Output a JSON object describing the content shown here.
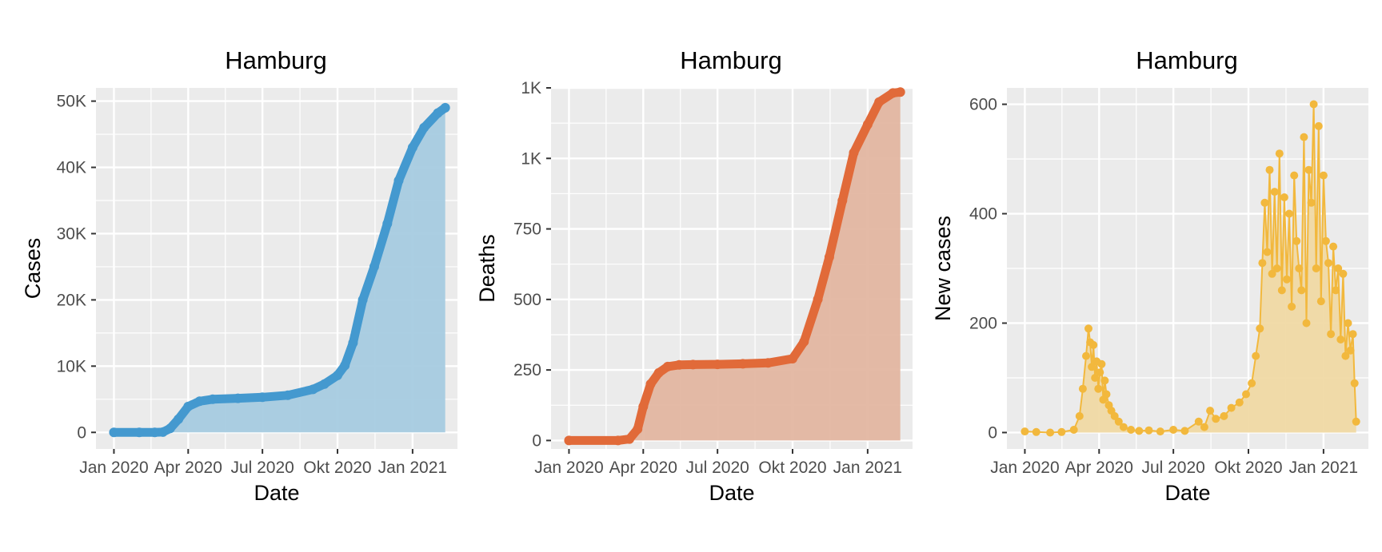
{
  "chart_data": [
    {
      "type": "area",
      "title": "Hamburg",
      "xlabel": "Date",
      "ylabel": "Cases",
      "color": "#4499CF",
      "fill": "#A6CBE0",
      "x_start": "2020-01-01",
      "x_end": "2021-02-10",
      "xlim": [
        "2019-12-10",
        "2021-02-25"
      ],
      "ylim": [
        -2500,
        52000
      ],
      "x_ticks": [
        {
          "date": "2020-01-01",
          "label": "Jan 2020"
        },
        {
          "date": "2020-04-01",
          "label": "Apr 2020"
        },
        {
          "date": "2020-07-01",
          "label": "Jul 2020"
        },
        {
          "date": "2020-10-01",
          "label": "Okt 2020"
        },
        {
          "date": "2021-01-01",
          "label": "Jan 2021"
        }
      ],
      "y_ticks": [
        {
          "value": 0,
          "label": "0"
        },
        {
          "value": 10000,
          "label": "10K"
        },
        {
          "value": 20000,
          "label": "20K"
        },
        {
          "value": 30000,
          "label": "30K"
        },
        {
          "value": 40000,
          "label": "40K"
        },
        {
          "value": 50000,
          "label": "50K"
        }
      ],
      "x": [
        "2020-01-01",
        "2020-02-01",
        "2020-02-20",
        "2020-03-01",
        "2020-03-10",
        "2020-03-20",
        "2020-04-01",
        "2020-04-15",
        "2020-05-01",
        "2020-06-01",
        "2020-07-01",
        "2020-08-01",
        "2020-09-01",
        "2020-09-15",
        "2020-10-01",
        "2020-10-10",
        "2020-10-20",
        "2020-11-01",
        "2020-11-15",
        "2020-12-01",
        "2020-12-15",
        "2021-01-01",
        "2021-01-15",
        "2021-02-01",
        "2021-02-10"
      ],
      "values": [
        0,
        0,
        0,
        50,
        600,
        2000,
        3900,
        4700,
        5000,
        5150,
        5300,
        5600,
        6500,
        7300,
        8600,
        10100,
        13500,
        20000,
        25000,
        31500,
        38000,
        43000,
        46000,
        48200,
        49000
      ]
    },
    {
      "type": "area",
      "title": "Hamburg",
      "xlabel": "Date",
      "ylabel": "Deaths",
      "color": "#E16A39",
      "fill": "#E3B6A1",
      "x_start": "2020-01-01",
      "x_end": "2021-02-10",
      "xlim": [
        "2019-12-10",
        "2021-02-25"
      ],
      "ylim": [
        -30,
        1250
      ],
      "x_ticks": [
        {
          "date": "2020-01-01",
          "label": "Jan 2020"
        },
        {
          "date": "2020-04-01",
          "label": "Apr 2020"
        },
        {
          "date": "2020-07-01",
          "label": "Jul 2020"
        },
        {
          "date": "2020-10-01",
          "label": "Okt 2020"
        },
        {
          "date": "2021-01-01",
          "label": "Jan 2021"
        }
      ],
      "y_ticks": [
        {
          "value": 0,
          "label": "0"
        },
        {
          "value": 250,
          "label": "250"
        },
        {
          "value": 500,
          "label": "500"
        },
        {
          "value": 750,
          "label": "750"
        },
        {
          "value": 1000,
          "label": "1K"
        },
        {
          "value": 1250,
          "label": "1K"
        }
      ],
      "x": [
        "2020-01-01",
        "2020-03-01",
        "2020-03-15",
        "2020-03-25",
        "2020-04-01",
        "2020-04-10",
        "2020-04-20",
        "2020-05-01",
        "2020-05-15",
        "2020-06-01",
        "2020-07-01",
        "2020-08-01",
        "2020-09-01",
        "2020-10-01",
        "2020-10-15",
        "2020-11-01",
        "2020-11-15",
        "2020-12-01",
        "2020-12-15",
        "2021-01-01",
        "2021-01-15",
        "2021-02-01",
        "2021-02-10"
      ],
      "values": [
        0,
        0,
        5,
        40,
        120,
        200,
        240,
        262,
        268,
        269,
        270,
        272,
        275,
        290,
        350,
        500,
        650,
        850,
        1020,
        1120,
        1200,
        1232,
        1235
      ]
    },
    {
      "type": "area",
      "title": "Hamburg",
      "xlabel": "Date",
      "ylabel": "New cases",
      "color": "#F2B83D",
      "fill": "#F0D9A4",
      "x_start": "2020-01-01",
      "x_end": "2021-02-10",
      "xlim": [
        "2019-12-10",
        "2021-02-25"
      ],
      "ylim": [
        -30,
        630
      ],
      "x_ticks": [
        {
          "date": "2020-01-01",
          "label": "Jan 2020"
        },
        {
          "date": "2020-04-01",
          "label": "Apr 2020"
        },
        {
          "date": "2020-07-01",
          "label": "Jul 2020"
        },
        {
          "date": "2020-10-01",
          "label": "Okt 2020"
        },
        {
          "date": "2021-01-01",
          "label": "Jan 2021"
        }
      ],
      "y_ticks": [
        {
          "value": 0,
          "label": "0"
        },
        {
          "value": 200,
          "label": "200"
        },
        {
          "value": 400,
          "label": "400"
        },
        {
          "value": 600,
          "label": "600"
        }
      ],
      "x": [
        "2020-01-01",
        "2020-01-15",
        "2020-02-01",
        "2020-02-15",
        "2020-03-01",
        "2020-03-08",
        "2020-03-12",
        "2020-03-16",
        "2020-03-19",
        "2020-03-21",
        "2020-03-23",
        "2020-03-25",
        "2020-03-27",
        "2020-03-29",
        "2020-03-31",
        "2020-04-02",
        "2020-04-04",
        "2020-04-06",
        "2020-04-08",
        "2020-04-10",
        "2020-04-13",
        "2020-04-16",
        "2020-04-20",
        "2020-04-25",
        "2020-05-01",
        "2020-05-10",
        "2020-05-20",
        "2020-06-01",
        "2020-06-15",
        "2020-07-01",
        "2020-07-15",
        "2020-08-01",
        "2020-08-08",
        "2020-08-15",
        "2020-08-22",
        "2020-09-01",
        "2020-09-10",
        "2020-09-20",
        "2020-09-28",
        "2020-10-05",
        "2020-10-10",
        "2020-10-15",
        "2020-10-18",
        "2020-10-21",
        "2020-10-24",
        "2020-10-27",
        "2020-10-30",
        "2020-11-02",
        "2020-11-05",
        "2020-11-08",
        "2020-11-11",
        "2020-11-14",
        "2020-11-17",
        "2020-11-20",
        "2020-11-23",
        "2020-11-26",
        "2020-11-29",
        "2020-12-02",
        "2020-12-05",
        "2020-12-08",
        "2020-12-11",
        "2020-12-14",
        "2020-12-17",
        "2020-12-20",
        "2020-12-23",
        "2020-12-26",
        "2020-12-29",
        "2021-01-01",
        "2021-01-04",
        "2021-01-07",
        "2021-01-10",
        "2021-01-13",
        "2021-01-16",
        "2021-01-19",
        "2021-01-22",
        "2021-01-25",
        "2021-01-28",
        "2021-01-31",
        "2021-02-03",
        "2021-02-06",
        "2021-02-08",
        "2021-02-10"
      ],
      "values": [
        2,
        1,
        0,
        1,
        5,
        30,
        80,
        140,
        190,
        165,
        120,
        160,
        100,
        130,
        80,
        110,
        125,
        60,
        95,
        70,
        50,
        40,
        30,
        20,
        10,
        5,
        3,
        4,
        2,
        5,
        3,
        20,
        10,
        40,
        25,
        30,
        45,
        55,
        70,
        90,
        140,
        190,
        310,
        420,
        330,
        480,
        290,
        440,
        300,
        510,
        260,
        430,
        280,
        400,
        230,
        470,
        350,
        300,
        260,
        540,
        200,
        480,
        420,
        600,
        300,
        560,
        240,
        470,
        350,
        310,
        180,
        340,
        260,
        300,
        170,
        290,
        140,
        200,
        150,
        180,
        90,
        20
      ]
    }
  ]
}
